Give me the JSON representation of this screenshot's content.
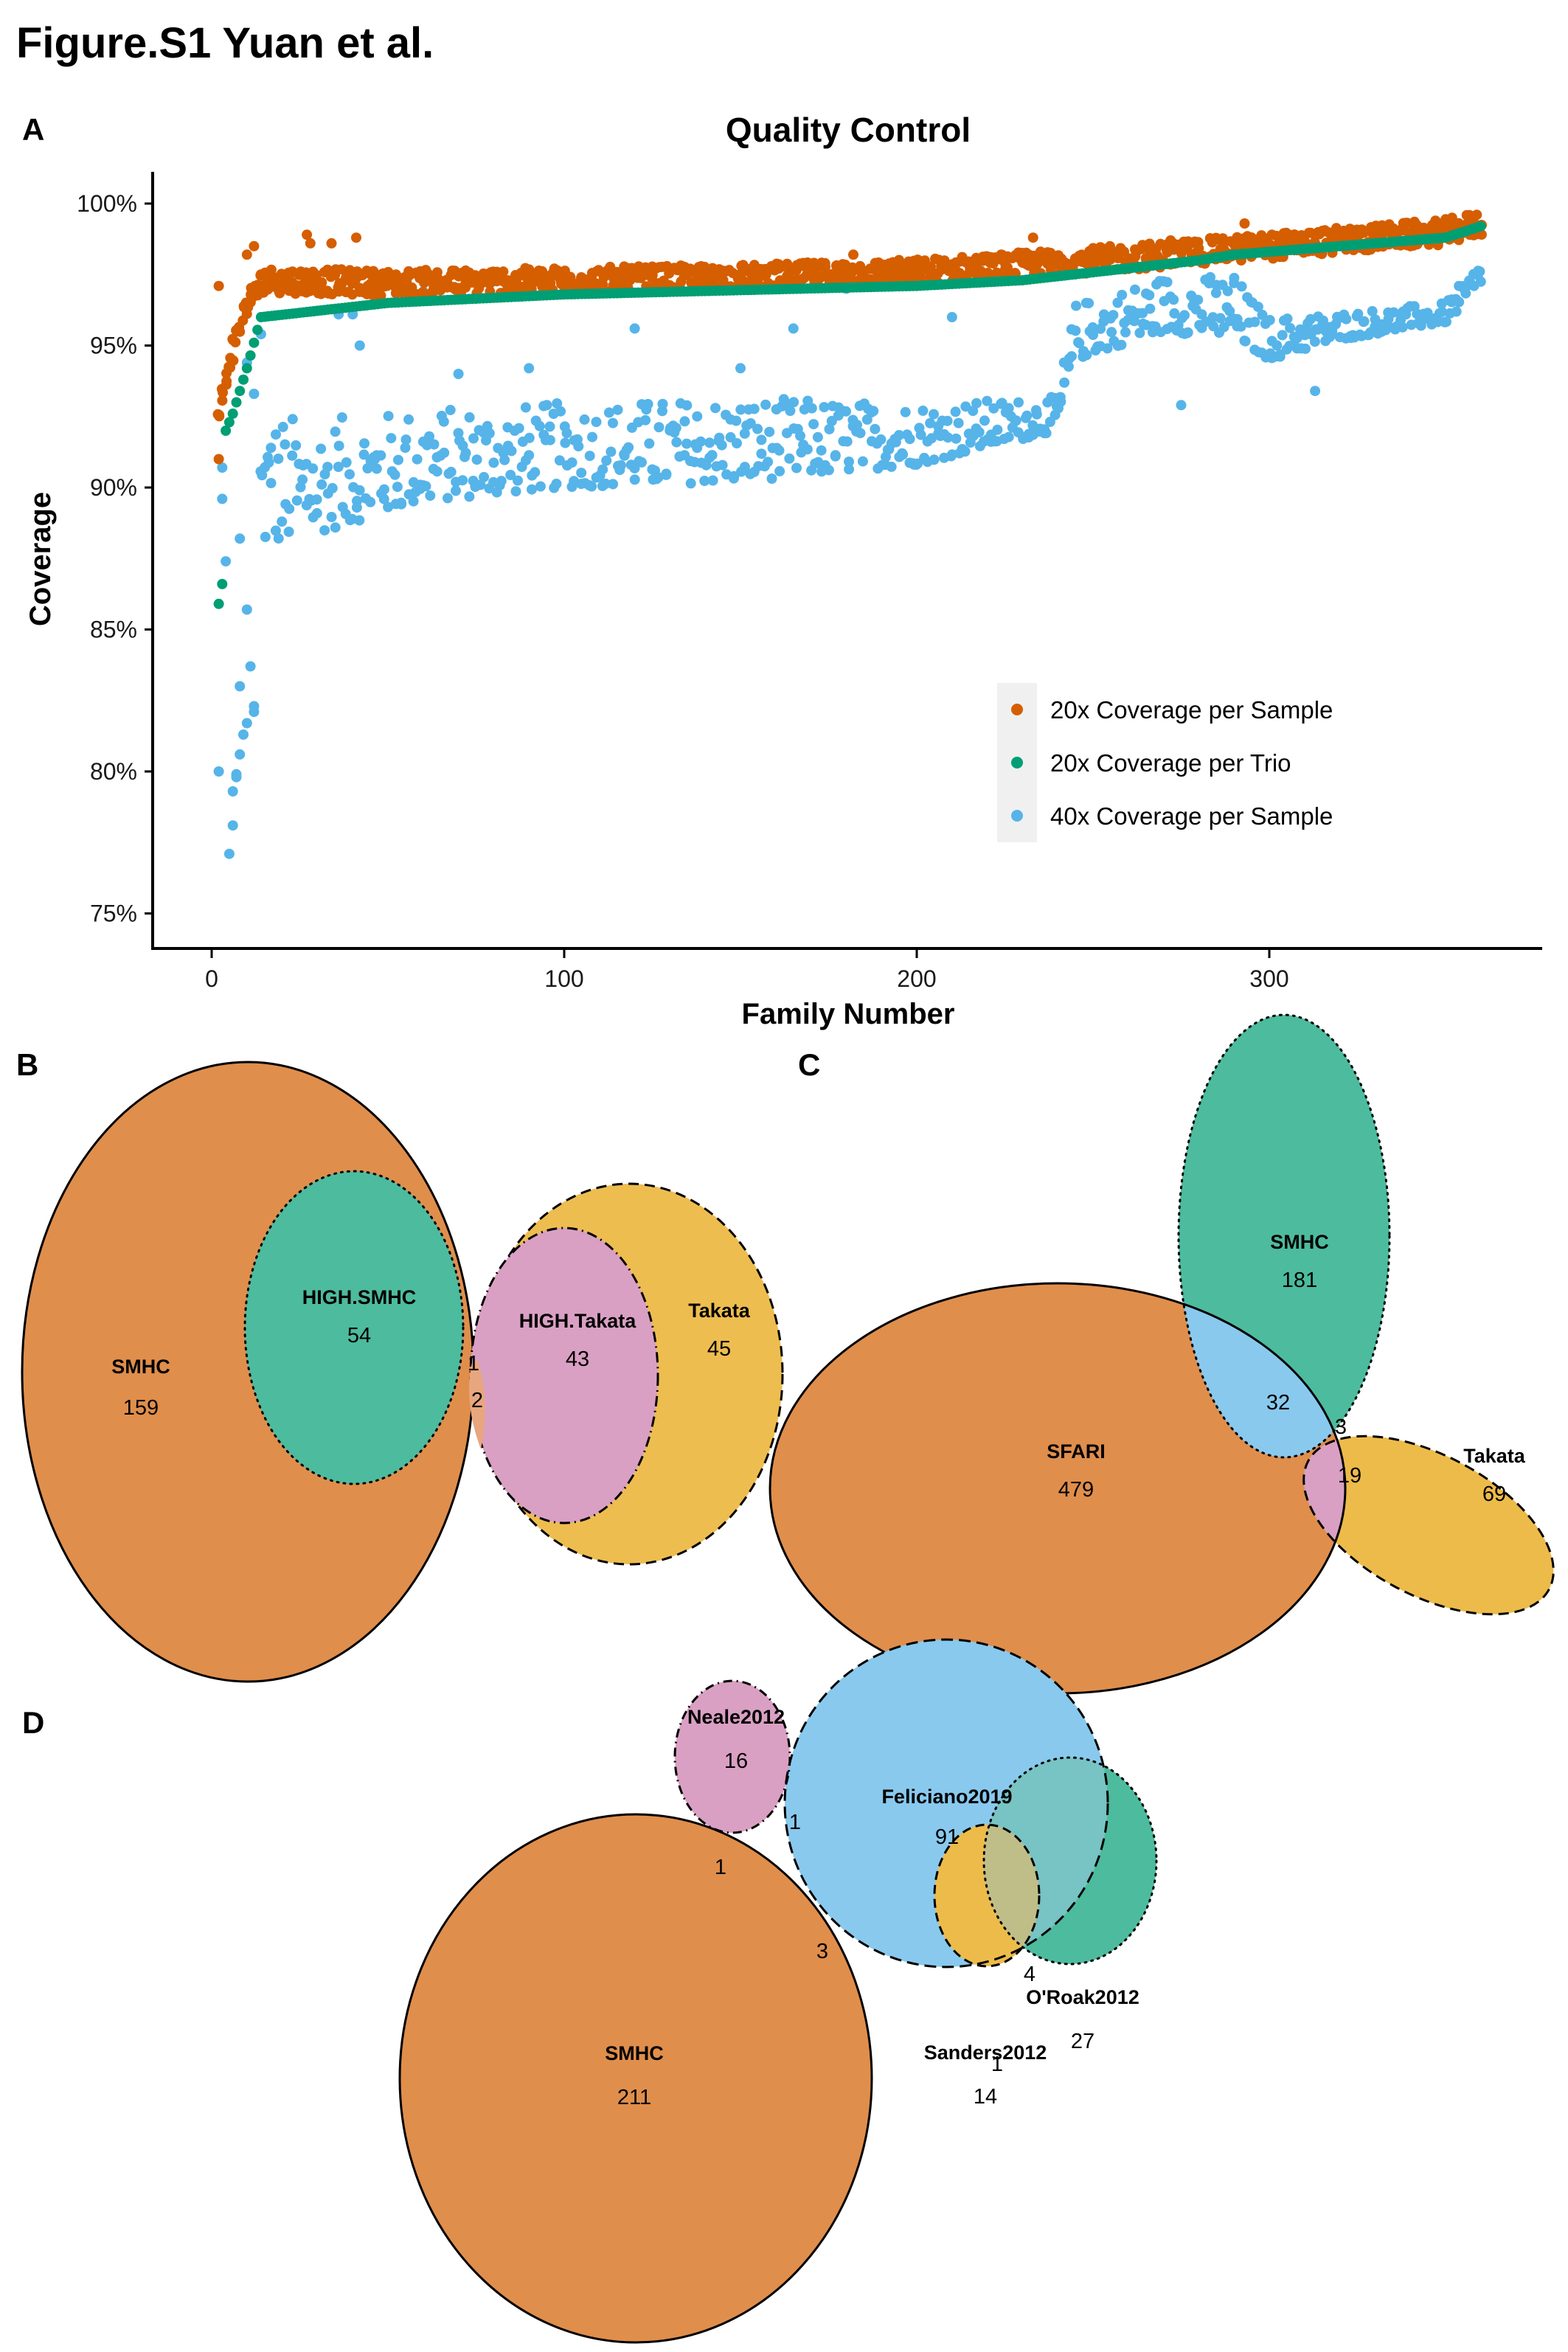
{
  "figure_title": "Figure.S1 Yuan et al.",
  "colors": {
    "orange_points": "#D55E00",
    "green_points": "#009E73",
    "blue_points": "#56B4E9",
    "venn_orange": "#E08E4C",
    "venn_green": "#4DBB9E",
    "venn_pink": "#D9A0C3",
    "venn_yellow": "#EDBB4A",
    "venn_blue": "#89C9EE",
    "legend_bg": "#F0F0F0"
  },
  "chart_data": [
    {
      "panel": "A",
      "type": "scatter",
      "title": "Quality Control",
      "xlabel": "Family Number",
      "ylabel": "Coverage",
      "xlim": [
        -15,
        375
      ],
      "ylim": [
        74,
        101.5
      ],
      "x_ticks": [
        0,
        100,
        200,
        300
      ],
      "x_tick_labels": [
        "0",
        "100",
        "200",
        "300"
      ],
      "y_ticks": [
        75,
        80,
        85,
        90,
        95,
        100
      ],
      "y_tick_labels": [
        "75%",
        "80%",
        "85%",
        "90%",
        "95%",
        "100%"
      ],
      "grid": false,
      "legend_position": "bottom-right",
      "n_families": 360,
      "series": [
        {
          "name": "20x Coverage per Sample",
          "color": "#D55E00",
          "trend": [
            [
              2,
              92.4
            ],
            [
              5,
              94.5
            ],
            [
              10,
              96.5
            ],
            [
              15,
              97.3
            ],
            [
              50,
              97.2
            ],
            [
              100,
              97.3
            ],
            [
              150,
              97.4
            ],
            [
              200,
              97.6
            ],
            [
              250,
              98.0
            ],
            [
              300,
              98.5
            ],
            [
              350,
              99.0
            ],
            [
              360,
              99.3
            ]
          ],
          "spread": 0.45,
          "outliers": [
            [
              2,
              91.0
            ],
            [
              2,
              97.1
            ],
            [
              27,
              98.9
            ],
            [
              28,
              98.6
            ],
            [
              34,
              98.6
            ],
            [
              41,
              98.8
            ],
            [
              12,
              98.5
            ],
            [
              10,
              98.2
            ],
            [
              182,
              98.2
            ],
            [
              233,
              98.8
            ],
            [
              293,
              99.3
            ],
            [
              272,
              98.7
            ]
          ]
        },
        {
          "name": "20x Coverage per Trio",
          "color": "#009E73",
          "trend": [
            [
              2,
              85.9
            ],
            [
              3,
              86.6
            ],
            [
              4,
              92.0
            ],
            [
              6,
              92.6
            ],
            [
              8,
              93.4
            ],
            [
              10,
              94.2
            ],
            [
              12,
              95.1
            ],
            [
              14,
              96.0
            ],
            [
              50,
              96.5
            ],
            [
              100,
              96.8
            ],
            [
              150,
              96.95
            ],
            [
              200,
              97.1
            ],
            [
              230,
              97.3
            ],
            [
              280,
              98.0
            ],
            [
              290,
              98.2
            ],
            [
              350,
              98.8
            ],
            [
              360,
              99.2
            ]
          ]
        },
        {
          "name": "40x Coverage per Sample",
          "color": "#56B4E9",
          "lower_band": [
            [
              14,
              87.8
            ],
            [
              30,
              88.4
            ],
            [
              60,
              89.5
            ],
            [
              100,
              90.0
            ],
            [
              150,
              90.2
            ],
            [
              200,
              90.8
            ],
            [
              240,
              92.0
            ],
            [
              245,
              94.5
            ],
            [
              270,
              95.5
            ],
            [
              290,
              95.2
            ],
            [
              300,
              94.5
            ],
            [
              320,
              95.2
            ],
            [
              350,
              95.8
            ],
            [
              360,
              97.0
            ]
          ],
          "upper_band": [
            [
              14,
              92.8
            ],
            [
              30,
              92.4
            ],
            [
              60,
              92.8
            ],
            [
              100,
              93.0
            ],
            [
              150,
              93.2
            ],
            [
              200,
              93.0
            ],
            [
              240,
              93.2
            ],
            [
              245,
              96.5
            ],
            [
              270,
              97.5
            ],
            [
              290,
              97.5
            ],
            [
              300,
              96.0
            ],
            [
              320,
              96.2
            ],
            [
              350,
              96.5
            ],
            [
              360,
              98.0
            ]
          ],
          "outliers": [
            [
              2,
              80.0
            ],
            [
              3,
              89.6
            ],
            [
              3,
              90.7
            ],
            [
              4,
              87.4
            ],
            [
              5,
              77.1
            ],
            [
              6,
              79.3
            ],
            [
              6,
              78.1
            ],
            [
              7,
              79.8
            ],
            [
              7,
              79.9
            ],
            [
              8,
              80.6
            ],
            [
              8,
              83.0
            ],
            [
              9,
              81.3
            ],
            [
              10,
              81.7
            ],
            [
              10,
              85.7
            ],
            [
              11,
              83.7
            ],
            [
              12,
              82.3
            ],
            [
              12,
              82.1
            ],
            [
              8,
              88.2
            ],
            [
              10,
              94.4
            ],
            [
              12,
              93.3
            ],
            [
              14,
              95.4
            ],
            [
              30,
              96.9
            ],
            [
              36,
              96.1
            ],
            [
              40,
              96.1
            ],
            [
              42,
              95.0
            ],
            [
              60,
              96.9
            ],
            [
              70,
              94.0
            ],
            [
              90,
              94.2
            ],
            [
              120,
              95.6
            ],
            [
              150,
              94.2
            ],
            [
              165,
              95.6
            ],
            [
              180,
              97.0
            ],
            [
              210,
              96.0
            ],
            [
              275,
              92.9
            ],
            [
              313,
              93.4
            ],
            [
              290,
              97.2
            ]
          ]
        }
      ]
    },
    {
      "panel": "B",
      "type": "venn",
      "sets": [
        {
          "name": "SMHC",
          "unique_count": "159",
          "color": "#E08E4C",
          "border": "solid"
        },
        {
          "name": "HIGH.SMHC",
          "unique_count": "54",
          "color": "#4DBB9E",
          "border": "dotted"
        },
        {
          "name": "HIGH.Takata",
          "unique_count": "43",
          "color": "#D9A0C3",
          "border": "dashdot"
        },
        {
          "name": "Takata",
          "unique_count": "45",
          "color": "#EDBB4A",
          "border": "dashed"
        }
      ],
      "overlaps": [
        {
          "sets": [
            "SMHC",
            "HIGH.SMHC",
            "HIGH.Takata",
            "Takata"
          ],
          "count": "1"
        },
        {
          "sets": [
            "SMHC",
            "HIGH.Takata",
            "Takata"
          ],
          "count": "2"
        }
      ]
    },
    {
      "panel": "C",
      "type": "venn",
      "sets": [
        {
          "name": "SFARI",
          "unique_count": "479",
          "color": "#E08E4C",
          "border": "solid"
        },
        {
          "name": "SMHC",
          "unique_count": "181",
          "color": "#4DBB9E",
          "border": "dotted"
        },
        {
          "name": "Takata",
          "unique_count": "69",
          "color": "#EDBB4A",
          "border": "dashed"
        }
      ],
      "overlaps": [
        {
          "sets": [
            "SFARI",
            "SMHC"
          ],
          "count": "32"
        },
        {
          "sets": [
            "SFARI",
            "SMHC",
            "Takata"
          ],
          "count": "3"
        },
        {
          "sets": [
            "SFARI",
            "Takata"
          ],
          "count": "19"
        }
      ]
    },
    {
      "panel": "D",
      "type": "venn",
      "sets": [
        {
          "name": "SMHC",
          "unique_count": "211",
          "color": "#E08E4C",
          "border": "solid"
        },
        {
          "name": "Feliciano2019",
          "unique_count": "91",
          "color": "#89C9EE",
          "border": "dashed"
        },
        {
          "name": "Neale2012",
          "unique_count": "16",
          "color": "#D9A0C3",
          "border": "dashdot"
        },
        {
          "name": "Sanders2012",
          "unique_count": "14",
          "color": "#EDBB4A",
          "border": "dashed"
        },
        {
          "name": "O'Roak2012",
          "unique_count": "27",
          "color": "#4DBB9E",
          "border": "dotted"
        }
      ],
      "overlaps": [
        {
          "sets": [
            "Neale2012",
            "Feliciano2019"
          ],
          "count": "1"
        },
        {
          "sets": [
            "Neale2012",
            "SMHC"
          ],
          "count": "1"
        },
        {
          "sets": [
            "SMHC",
            "Feliciano2019"
          ],
          "count": "3"
        },
        {
          "sets": [
            "Feliciano2019",
            "O'Roak2012"
          ],
          "count": "4"
        },
        {
          "sets": [
            "Sanders2012",
            "O'Roak2012"
          ],
          "count": "1"
        }
      ]
    }
  ],
  "panels": {
    "A": {
      "letter": "A"
    },
    "B": {
      "letter": "B"
    },
    "C": {
      "letter": "C"
    },
    "D": {
      "letter": "D"
    }
  },
  "legend": {
    "items": [
      {
        "label": "20x Coverage per Sample",
        "color": "#D55E00"
      },
      {
        "label": "20x Coverage per Trio",
        "color": "#009E73"
      },
      {
        "label": "40x Coverage per Sample",
        "color": "#56B4E9"
      }
    ]
  }
}
